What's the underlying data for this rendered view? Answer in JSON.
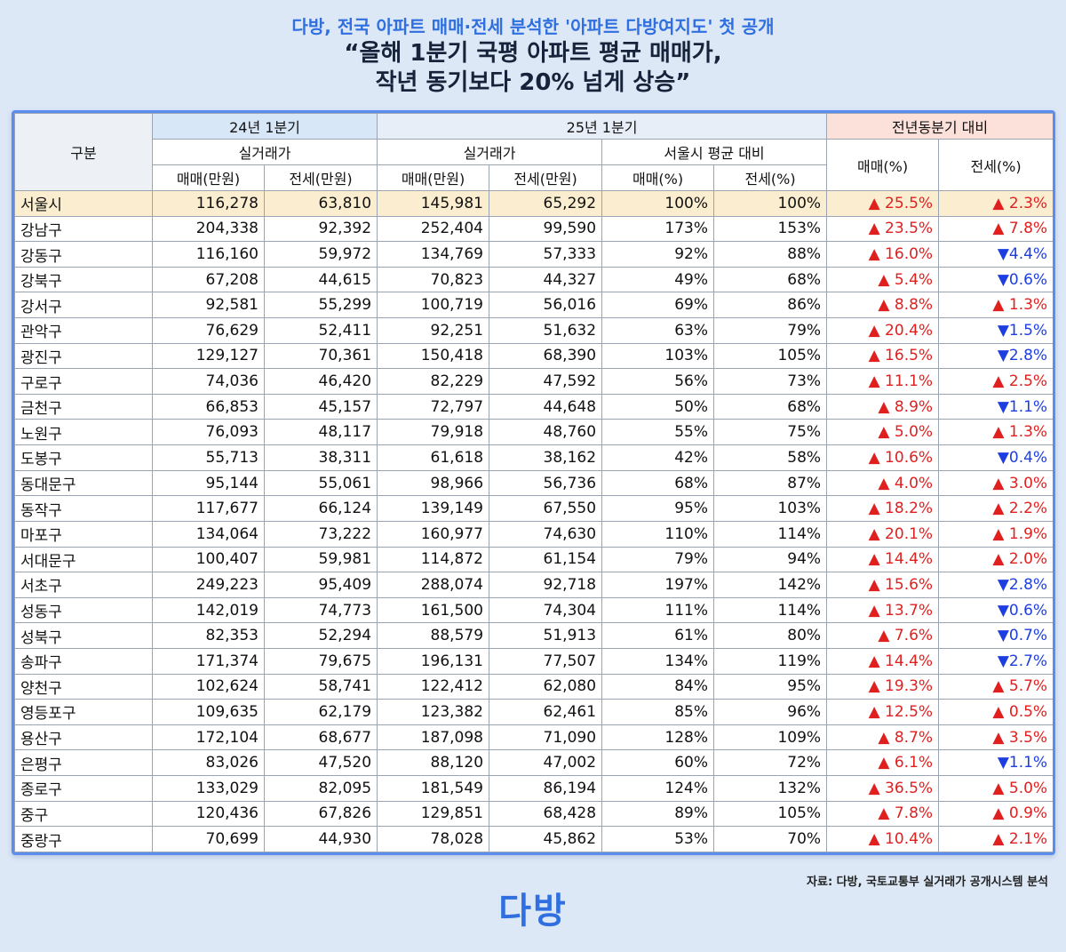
{
  "subtitle": "다방, 전국 아파트 매매·전세 분석한 '아파트 다방여지도' 첫 공개",
  "headline_line1": "“올해 1분기 국평 아파트 평균 매매가,",
  "headline_line2": "작년 동기보다 20% 넘게 상승”",
  "table": {
    "col_region": "구분",
    "group_q24": "24년 1분기",
    "group_q25": "25년 1분기",
    "group_yoy": "전년동분기 대비",
    "sub_actual_24": "실거래가",
    "sub_actual_25": "실거래가",
    "sub_vs_seoul": "서울시 평균 대비",
    "col_sale_won": "매매(만원)",
    "col_jeonse_won": "전세(만원)",
    "col_sale_pct": "매매(%)",
    "col_jeonse_pct": "전세(%)",
    "rows": [
      {
        "name": "서울시",
        "s24": "116,278",
        "j24": "63,810",
        "s25": "145,981",
        "j25": "65,292",
        "sp": "100%",
        "jp": "100%",
        "yoy_s": "▲ 25.5%",
        "yoy_s_dir": "up",
        "yoy_j": "▲ 2.3%",
        "yoy_j_dir": "up"
      },
      {
        "name": "강남구",
        "s24": "204,338",
        "j24": "92,392",
        "s25": "252,404",
        "j25": "99,590",
        "sp": "173%",
        "jp": "153%",
        "yoy_s": "▲ 23.5%",
        "yoy_s_dir": "up",
        "yoy_j": "▲ 7.8%",
        "yoy_j_dir": "up"
      },
      {
        "name": "강동구",
        "s24": "116,160",
        "j24": "59,972",
        "s25": "134,769",
        "j25": "57,333",
        "sp": "92%",
        "jp": "88%",
        "yoy_s": "▲ 16.0%",
        "yoy_s_dir": "up",
        "yoy_j": "▼4.4%",
        "yoy_j_dir": "down"
      },
      {
        "name": "강북구",
        "s24": "67,208",
        "j24": "44,615",
        "s25": "70,823",
        "j25": "44,327",
        "sp": "49%",
        "jp": "68%",
        "yoy_s": "▲ 5.4%",
        "yoy_s_dir": "up",
        "yoy_j": "▼0.6%",
        "yoy_j_dir": "down"
      },
      {
        "name": "강서구",
        "s24": "92,581",
        "j24": "55,299",
        "s25": "100,719",
        "j25": "56,016",
        "sp": "69%",
        "jp": "86%",
        "yoy_s": "▲ 8.8%",
        "yoy_s_dir": "up",
        "yoy_j": "▲ 1.3%",
        "yoy_j_dir": "up"
      },
      {
        "name": "관악구",
        "s24": "76,629",
        "j24": "52,411",
        "s25": "92,251",
        "j25": "51,632",
        "sp": "63%",
        "jp": "79%",
        "yoy_s": "▲ 20.4%",
        "yoy_s_dir": "up",
        "yoy_j": "▼1.5%",
        "yoy_j_dir": "down"
      },
      {
        "name": "광진구",
        "s24": "129,127",
        "j24": "70,361",
        "s25": "150,418",
        "j25": "68,390",
        "sp": "103%",
        "jp": "105%",
        "yoy_s": "▲ 16.5%",
        "yoy_s_dir": "up",
        "yoy_j": "▼2.8%",
        "yoy_j_dir": "down"
      },
      {
        "name": "구로구",
        "s24": "74,036",
        "j24": "46,420",
        "s25": "82,229",
        "j25": "47,592",
        "sp": "56%",
        "jp": "73%",
        "yoy_s": "▲ 11.1%",
        "yoy_s_dir": "up",
        "yoy_j": "▲ 2.5%",
        "yoy_j_dir": "up"
      },
      {
        "name": "금천구",
        "s24": "66,853",
        "j24": "45,157",
        "s25": "72,797",
        "j25": "44,648",
        "sp": "50%",
        "jp": "68%",
        "yoy_s": "▲ 8.9%",
        "yoy_s_dir": "up",
        "yoy_j": "▼1.1%",
        "yoy_j_dir": "down"
      },
      {
        "name": "노원구",
        "s24": "76,093",
        "j24": "48,117",
        "s25": "79,918",
        "j25": "48,760",
        "sp": "55%",
        "jp": "75%",
        "yoy_s": "▲ 5.0%",
        "yoy_s_dir": "up",
        "yoy_j": "▲ 1.3%",
        "yoy_j_dir": "up"
      },
      {
        "name": "도봉구",
        "s24": "55,713",
        "j24": "38,311",
        "s25": "61,618",
        "j25": "38,162",
        "sp": "42%",
        "jp": "58%",
        "yoy_s": "▲ 10.6%",
        "yoy_s_dir": "up",
        "yoy_j": "▼0.4%",
        "yoy_j_dir": "down"
      },
      {
        "name": "동대문구",
        "s24": "95,144",
        "j24": "55,061",
        "s25": "98,966",
        "j25": "56,736",
        "sp": "68%",
        "jp": "87%",
        "yoy_s": "▲ 4.0%",
        "yoy_s_dir": "up",
        "yoy_j": "▲ 3.0%",
        "yoy_j_dir": "up"
      },
      {
        "name": "동작구",
        "s24": "117,677",
        "j24": "66,124",
        "s25": "139,149",
        "j25": "67,550",
        "sp": "95%",
        "jp": "103%",
        "yoy_s": "▲ 18.2%",
        "yoy_s_dir": "up",
        "yoy_j": "▲ 2.2%",
        "yoy_j_dir": "up"
      },
      {
        "name": "마포구",
        "s24": "134,064",
        "j24": "73,222",
        "s25": "160,977",
        "j25": "74,630",
        "sp": "110%",
        "jp": "114%",
        "yoy_s": "▲ 20.1%",
        "yoy_s_dir": "up",
        "yoy_j": "▲ 1.9%",
        "yoy_j_dir": "up"
      },
      {
        "name": "서대문구",
        "s24": "100,407",
        "j24": "59,981",
        "s25": "114,872",
        "j25": "61,154",
        "sp": "79%",
        "jp": "94%",
        "yoy_s": "▲ 14.4%",
        "yoy_s_dir": "up",
        "yoy_j": "▲ 2.0%",
        "yoy_j_dir": "up"
      },
      {
        "name": "서초구",
        "s24": "249,223",
        "j24": "95,409",
        "s25": "288,074",
        "j25": "92,718",
        "sp": "197%",
        "jp": "142%",
        "yoy_s": "▲ 15.6%",
        "yoy_s_dir": "up",
        "yoy_j": "▼2.8%",
        "yoy_j_dir": "down"
      },
      {
        "name": "성동구",
        "s24": "142,019",
        "j24": "74,773",
        "s25": "161,500",
        "j25": "74,304",
        "sp": "111%",
        "jp": "114%",
        "yoy_s": "▲ 13.7%",
        "yoy_s_dir": "up",
        "yoy_j": "▼0.6%",
        "yoy_j_dir": "down"
      },
      {
        "name": "성북구",
        "s24": "82,353",
        "j24": "52,294",
        "s25": "88,579",
        "j25": "51,913",
        "sp": "61%",
        "jp": "80%",
        "yoy_s": "▲ 7.6%",
        "yoy_s_dir": "up",
        "yoy_j": "▼0.7%",
        "yoy_j_dir": "down"
      },
      {
        "name": "송파구",
        "s24": "171,374",
        "j24": "79,675",
        "s25": "196,131",
        "j25": "77,507",
        "sp": "134%",
        "jp": "119%",
        "yoy_s": "▲ 14.4%",
        "yoy_s_dir": "up",
        "yoy_j": "▼2.7%",
        "yoy_j_dir": "down"
      },
      {
        "name": "양천구",
        "s24": "102,624",
        "j24": "58,741",
        "s25": "122,412",
        "j25": "62,080",
        "sp": "84%",
        "jp": "95%",
        "yoy_s": "▲ 19.3%",
        "yoy_s_dir": "up",
        "yoy_j": "▲ 5.7%",
        "yoy_j_dir": "up"
      },
      {
        "name": "영등포구",
        "s24": "109,635",
        "j24": "62,179",
        "s25": "123,382",
        "j25": "62,461",
        "sp": "85%",
        "jp": "96%",
        "yoy_s": "▲ 12.5%",
        "yoy_s_dir": "up",
        "yoy_j": "▲ 0.5%",
        "yoy_j_dir": "up"
      },
      {
        "name": "용산구",
        "s24": "172,104",
        "j24": "68,677",
        "s25": "187,098",
        "j25": "71,090",
        "sp": "128%",
        "jp": "109%",
        "yoy_s": "▲ 8.7%",
        "yoy_s_dir": "up",
        "yoy_j": "▲ 3.5%",
        "yoy_j_dir": "up"
      },
      {
        "name": "은평구",
        "s24": "83,026",
        "j24": "47,520",
        "s25": "88,120",
        "j25": "47,002",
        "sp": "60%",
        "jp": "72%",
        "yoy_s": "▲ 6.1%",
        "yoy_s_dir": "up",
        "yoy_j": "▼1.1%",
        "yoy_j_dir": "down"
      },
      {
        "name": "종로구",
        "s24": "133,029",
        "j24": "82,095",
        "s25": "181,549",
        "j25": "86,194",
        "sp": "124%",
        "jp": "132%",
        "yoy_s": "▲ 36.5%",
        "yoy_s_dir": "up",
        "yoy_j": "▲ 5.0%",
        "yoy_j_dir": "up"
      },
      {
        "name": "중구",
        "s24": "120,436",
        "j24": "67,826",
        "s25": "129,851",
        "j25": "68,428",
        "sp": "89%",
        "jp": "105%",
        "yoy_s": "▲ 7.8%",
        "yoy_s_dir": "up",
        "yoy_j": "▲ 0.9%",
        "yoy_j_dir": "up"
      },
      {
        "name": "중랑구",
        "s24": "70,699",
        "j24": "44,930",
        "s25": "78,028",
        "j25": "45,862",
        "sp": "53%",
        "jp": "70%",
        "yoy_s": "▲ 10.4%",
        "yoy_s_dir": "up",
        "yoy_j": "▲ 2.1%",
        "yoy_j_dir": "up"
      }
    ]
  },
  "source": "자료: 다방, 국토교통부 실거래가 공개시스템 분석",
  "logo": "다방",
  "colors": {
    "accent": "#2f6fe0",
    "frame_border": "#5b8def",
    "up": "#e01f1f",
    "down": "#1d3fe0",
    "highlight_row": "#fbeed0"
  }
}
